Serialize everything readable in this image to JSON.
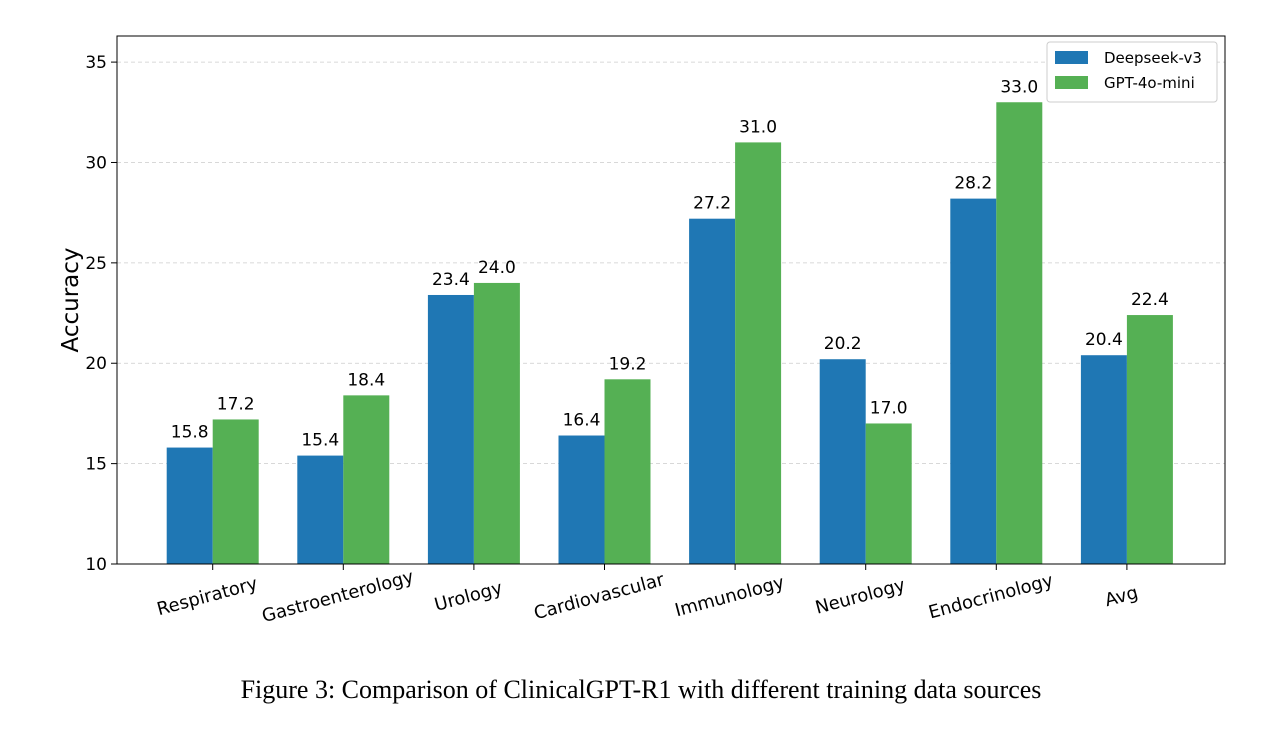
{
  "chart_data": {
    "type": "bar",
    "categories": [
      "Respiratory",
      "Gastroenterology",
      "Urology",
      "Cardiovascular",
      "Immunology",
      "Neurology",
      "Endocrinology",
      "Avg"
    ],
    "series": [
      {
        "name": "Deepseek-v3",
        "color": "#1f77b4",
        "values": [
          15.8,
          15.4,
          23.4,
          16.4,
          27.2,
          20.2,
          28.2,
          20.4
        ],
        "labels": [
          "15.8",
          "15.4",
          "23.4",
          "16.4",
          "27.2",
          "20.2",
          "28.2",
          "20.4"
        ]
      },
      {
        "name": "GPT-4o-mini",
        "color": "#55b054",
        "values": [
          17.2,
          18.4,
          24.0,
          19.2,
          31.0,
          17.0,
          33.0,
          22.4
        ],
        "labels": [
          "17.2",
          "18.4",
          "24.0",
          "19.2",
          "31.0",
          "17.0",
          "33.0",
          "22.4"
        ]
      }
    ],
    "ylabel": "Accuracy",
    "ylim": [
      10,
      36.3
    ],
    "yticks": [
      10,
      15,
      20,
      25,
      30,
      35
    ],
    "grid": "y dashed",
    "legend": "top-right"
  },
  "caption": "Figure 3: Comparison of ClinicalGPT-R1 with different training data sources"
}
